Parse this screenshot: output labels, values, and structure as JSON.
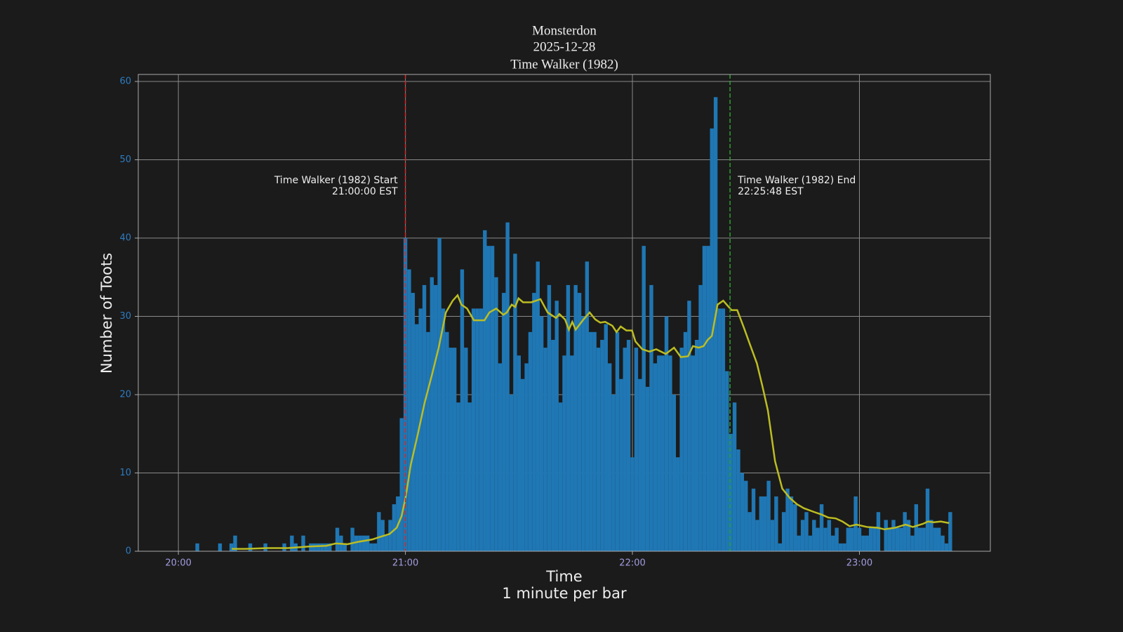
{
  "chart_data": {
    "type": "bar",
    "title": [
      "Monsterdon",
      "2025-12-28",
      "Time Walker (1982)"
    ],
    "xlabel": [
      "Time",
      "1 minute per bar"
    ],
    "ylabel": "Number of Toots",
    "xlim": [
      -10.6,
      214.6
    ],
    "xticks": [
      {
        "value": 0,
        "label": "20:00"
      },
      {
        "value": 60,
        "label": "21:00"
      },
      {
        "value": 120,
        "label": "22:00"
      },
      {
        "value": 180,
        "label": "23:00"
      }
    ],
    "ylim": [
      0,
      60.9
    ],
    "yticks": [
      0,
      10,
      20,
      30,
      40,
      50,
      60
    ],
    "grid": true,
    "color": "#1f77b4",
    "x": [
      5,
      11,
      14,
      15,
      19,
      23,
      28,
      30,
      31,
      33,
      35,
      36,
      37,
      38,
      39,
      40,
      42,
      43,
      44,
      46,
      47,
      48,
      49,
      50,
      51,
      52,
      53,
      54,
      55,
      56,
      57,
      58,
      59,
      60,
      61,
      62,
      63,
      64,
      65,
      66,
      67,
      68,
      69,
      70,
      71,
      72,
      73,
      74,
      75,
      76,
      77,
      78,
      79,
      80,
      81,
      82,
      83,
      84,
      85,
      86,
      87,
      88,
      89,
      90,
      91,
      92,
      93,
      94,
      95,
      96,
      97,
      98,
      99,
      100,
      101,
      102,
      103,
      104,
      105,
      106,
      107,
      108,
      109,
      110,
      111,
      112,
      113,
      114,
      115,
      116,
      117,
      118,
      119,
      120,
      121,
      122,
      123,
      124,
      125,
      126,
      127,
      128,
      129,
      130,
      131,
      132,
      133,
      134,
      135,
      136,
      137,
      138,
      139,
      140,
      141,
      142,
      143,
      144,
      145,
      146,
      147,
      148,
      149,
      150,
      151,
      152,
      153,
      154,
      155,
      156,
      157,
      158,
      159,
      160,
      161,
      162,
      163,
      164,
      165,
      166,
      167,
      168,
      169,
      170,
      171,
      172,
      173,
      174,
      175,
      176,
      177,
      178,
      179,
      180,
      181,
      182,
      183,
      184,
      185,
      187,
      188,
      189,
      190,
      191,
      192,
      193,
      194,
      195,
      196,
      197,
      198,
      199,
      200,
      201,
      202,
      203,
      204
    ],
    "values": [
      1,
      1,
      1,
      2,
      1,
      1,
      1,
      2,
      1,
      2,
      1,
      1,
      1,
      1,
      1,
      1,
      3,
      2,
      1,
      3,
      2,
      2,
      2,
      2,
      1,
      1,
      5,
      4,
      2,
      4,
      6,
      7,
      17,
      40,
      36,
      33,
      29,
      31,
      34,
      28,
      35,
      34,
      40,
      31,
      28,
      26,
      26,
      19,
      36,
      26,
      19,
      31,
      31,
      31,
      41,
      39,
      39,
      35,
      24,
      33,
      42,
      20,
      38,
      25,
      22,
      24,
      28,
      33,
      37,
      30,
      26,
      34,
      27,
      32,
      19,
      25,
      34,
      25,
      34,
      33,
      30,
      37,
      28,
      28,
      26,
      27,
      29,
      24,
      20,
      28,
      22,
      26,
      27,
      12,
      26,
      22,
      39,
      21,
      34,
      24,
      25,
      25,
      30,
      25,
      20,
      12,
      26,
      28,
      32,
      25,
      27,
      34,
      39,
      39,
      54,
      58,
      31,
      31,
      23,
      15,
      19,
      13,
      10,
      9,
      5,
      8,
      4,
      7,
      7,
      9,
      4,
      7,
      1,
      5,
      8,
      7,
      6,
      2,
      4,
      5,
      2,
      4,
      3,
      6,
      3,
      4,
      2,
      3,
      1,
      1,
      3,
      3,
      7,
      3,
      2,
      2,
      3,
      3,
      5,
      4,
      3,
      4,
      3,
      3,
      5,
      4,
      2,
      6,
      3,
      3,
      8,
      4,
      3,
      3,
      2,
      1,
      5
    ],
    "overlay": {
      "type": "line",
      "color": "#bcbd22",
      "x": [
        14.1,
        17.8,
        23.4,
        28.9,
        34.5,
        39.1,
        41.6,
        44.7,
        47.5,
        51.2,
        53.1,
        55.8,
        57.7,
        59.0,
        60.1,
        61.4,
        63.3,
        65.1,
        67.0,
        68.8,
        70.7,
        72.5,
        73.8,
        74.8,
        76.3,
        78.1,
        80.9,
        82.2,
        84.0,
        85.9,
        86.8,
        88.1,
        89.0,
        89.9,
        91.1,
        93.3,
        95.7,
        97.6,
        99.8,
        100.7,
        102.2,
        103.2,
        104.1,
        105.0,
        106.9,
        108.7,
        110.2,
        111.5,
        112.8,
        114.7,
        115.8,
        116.9,
        118.4,
        119.9,
        120.8,
        122.6,
        124.5,
        126.3,
        128.8,
        131.0,
        132.8,
        134.7,
        136.0,
        137.5,
        138.8,
        139.9,
        141.0,
        142.5,
        144.0,
        146.2,
        147.7,
        149.5,
        151.0,
        152.9,
        154.4,
        155.8,
        157.7,
        159.6,
        161.6,
        163.5,
        165.3,
        168.1,
        169.9,
        171.8,
        173.7,
        175.5,
        177.4,
        179.2,
        182.0,
        184.8,
        186.6,
        189.4,
        192.2,
        194.1,
        196.8,
        198.1,
        199.6,
        201.5,
        203.7
      ],
      "values": [
        0.3,
        0.3,
        0.4,
        0.4,
        0.6,
        0.7,
        1.0,
        0.9,
        1.2,
        1.5,
        1.8,
        2.2,
        3.0,
        4.5,
        7,
        11,
        15,
        19,
        22.5,
        26,
        30.5,
        32,
        32.7,
        31.5,
        31,
        29.5,
        29.5,
        30.5,
        31,
        30.2,
        30.5,
        31.5,
        31.2,
        32.3,
        31.8,
        31.8,
        32.2,
        30.5,
        29.8,
        30.3,
        29.6,
        28.3,
        29.3,
        28.3,
        29.5,
        30.5,
        29.6,
        29.2,
        29.3,
        28.8,
        28,
        28.7,
        28.2,
        28.2,
        26.8,
        25.8,
        25.5,
        25.8,
        25.2,
        26,
        24.8,
        24.9,
        26.2,
        26,
        26.2,
        27,
        27.5,
        31.5,
        32,
        30.8,
        30.8,
        28.5,
        26.5,
        24,
        21,
        18,
        11.5,
        8,
        6.8,
        6,
        5.5,
        5,
        4.7,
        4.3,
        4.2,
        3.8,
        3.2,
        3.4,
        3.1,
        3.0,
        2.8,
        3.0,
        3.4,
        3.1,
        3.5,
        3.8,
        3.7,
        3.8,
        3.6
      ]
    },
    "vlines": [
      {
        "x": 60,
        "color": "#d62728",
        "label": [
          "Time Walker (1982) Start",
          "21:00:00 EST"
        ],
        "side": "left"
      },
      {
        "x": 145.8,
        "color": "#2ca02c",
        "label": [
          "Time Walker (1982) End",
          "22:25:48 EST"
        ],
        "side": "right"
      }
    ]
  }
}
